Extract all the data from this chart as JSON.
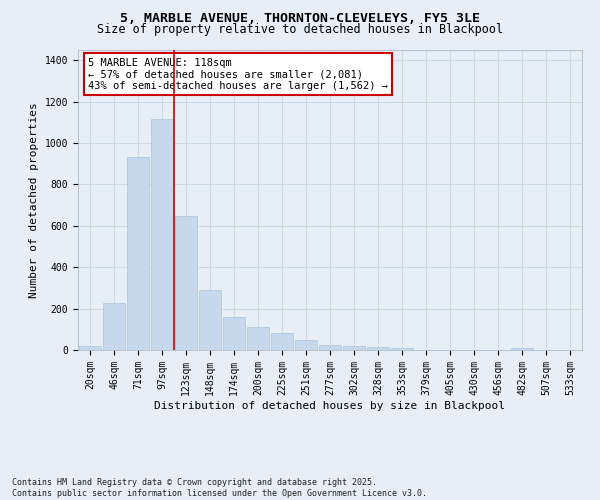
{
  "title_line1": "5, MARBLE AVENUE, THORNTON-CLEVELEYS, FY5 3LE",
  "title_line2": "Size of property relative to detached houses in Blackpool",
  "xlabel": "Distribution of detached houses by size in Blackpool",
  "ylabel": "Number of detached properties",
  "categories": [
    "20sqm",
    "46sqm",
    "71sqm",
    "97sqm",
    "123sqm",
    "148sqm",
    "174sqm",
    "200sqm",
    "225sqm",
    "251sqm",
    "277sqm",
    "302sqm",
    "328sqm",
    "353sqm",
    "379sqm",
    "405sqm",
    "430sqm",
    "456sqm",
    "482sqm",
    "507sqm",
    "533sqm"
  ],
  "values": [
    18,
    228,
    935,
    1115,
    650,
    290,
    160,
    110,
    80,
    47,
    25,
    20,
    15,
    12,
    0,
    0,
    0,
    0,
    12,
    0,
    0
  ],
  "bar_color": "#c6d9ec",
  "bar_edge_color": "#adc4db",
  "vline_color": "#cc0000",
  "annotation_text": "5 MARBLE AVENUE: 118sqm\n← 57% of detached houses are smaller (2,081)\n43% of semi-detached houses are larger (1,562) →",
  "annotation_box_color": "#cc0000",
  "ylim": [
    0,
    1450
  ],
  "yticks": [
    0,
    200,
    400,
    600,
    800,
    1000,
    1200,
    1400
  ],
  "grid_color": "#c8d4e4",
  "bg_color": "#e8eef6",
  "fig_color": "#e8eef6",
  "footer_text": "Contains HM Land Registry data © Crown copyright and database right 2025.\nContains public sector information licensed under the Open Government Licence v3.0.",
  "title_fontsize": 9.5,
  "subtitle_fontsize": 8.5,
  "axis_label_fontsize": 8,
  "tick_fontsize": 7,
  "annotation_fontsize": 7.5,
  "footer_fontsize": 6
}
